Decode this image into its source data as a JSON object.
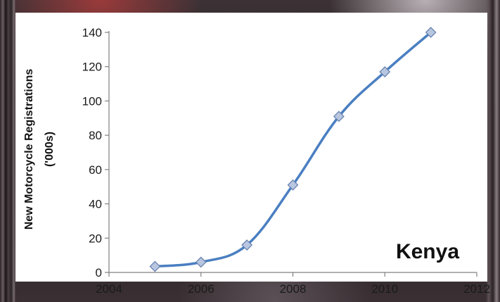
{
  "chart_data": {
    "type": "line",
    "x": [
      2005,
      2006,
      2007,
      2008,
      2009,
      2010,
      2011
    ],
    "series": [
      {
        "values": [
          3.5,
          6,
          16,
          51,
          91,
          117,
          140
        ]
      }
    ],
    "xlim": [
      2004,
      2012
    ],
    "ylim": [
      0,
      140
    ],
    "x_ticks": [
      "2004",
      "2006",
      "2008",
      "2010",
      "2012"
    ],
    "y_ticks": [
      "0",
      "20",
      "40",
      "60",
      "80",
      "100",
      "120",
      "140"
    ],
    "ylabel_line1": "New Motorcycle Registrations",
    "ylabel_line2": "('000s)",
    "annotation": "Kenya",
    "grid": false,
    "smooth": true,
    "colors": {
      "line": "#4a7fc1",
      "marker_fill": "#b8c6e0",
      "marker_stroke": "#6b84b0"
    }
  }
}
